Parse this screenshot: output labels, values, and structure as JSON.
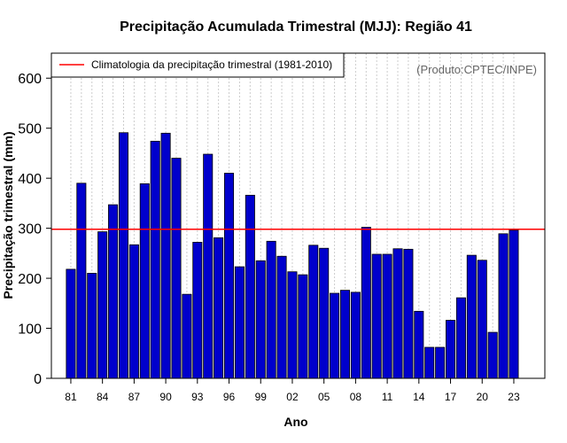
{
  "chart_data": {
    "type": "bar",
    "title": "Precipitação Acumulada Trimestral (MJJ): Região 41",
    "xlabel": "Ano",
    "ylabel": "Precipitação trimestral (mm)",
    "ylim": [
      0,
      650
    ],
    "yticks": [
      0,
      100,
      200,
      300,
      400,
      500,
      600
    ],
    "tick_labels": [
      "81",
      "84",
      "87",
      "90",
      "93",
      "96",
      "99",
      "02",
      "05",
      "08",
      "11",
      "14",
      "17",
      "20",
      "23"
    ],
    "years": [
      1981,
      1982,
      1983,
      1984,
      1985,
      1986,
      1987,
      1988,
      1989,
      1990,
      1991,
      1992,
      1993,
      1994,
      1995,
      1996,
      1997,
      1998,
      1999,
      2000,
      2001,
      2002,
      2003,
      2004,
      2005,
      2006,
      2007,
      2008,
      2009,
      2010,
      2011,
      2012,
      2013,
      2014,
      2015,
      2016,
      2017,
      2018,
      2019,
      2020,
      2021,
      2022,
      2023
    ],
    "values": [
      218,
      390,
      210,
      293,
      347,
      491,
      267,
      389,
      474,
      490,
      440,
      168,
      272,
      448,
      281,
      410,
      223,
      366,
      235,
      274,
      244,
      213,
      207,
      266,
      260,
      170,
      176,
      172,
      302,
      248,
      248,
      259,
      258,
      134,
      62,
      62,
      116,
      161,
      246,
      236,
      92,
      289,
      296
    ],
    "climatology": 298,
    "legend": "Climatologia da precipitação trimestral (1981-2010)",
    "credit": "(Produto:CPTEC/INPE)",
    "colors": {
      "bar": "#0000cc",
      "climatology": "#ff0000",
      "grid": "#cccccc"
    }
  }
}
